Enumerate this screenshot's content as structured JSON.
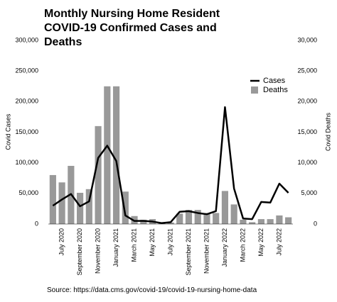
{
  "chart_data": {
    "type": "combo",
    "title": "Monthly Nursing Home Resident COVID-19 Confirmed Cases and Deaths",
    "source": "Source: https://data.cms.gov/covid-19/covid-19-nursing-home-data",
    "y_label": "Covid Cases",
    "y2_label": "Covid Deaths",
    "categories": [
      null,
      "July 2020",
      null,
      "September 2020",
      null,
      "November 2020",
      null,
      "January 2021",
      null,
      "March 2021",
      null,
      "May 2021",
      null,
      "July 2021",
      null,
      "September 2021",
      null,
      "November 2021",
      null,
      "January 2022",
      null,
      "March 2022",
      null,
      "May 2022",
      null,
      "July 2022",
      null
    ],
    "series": [
      {
        "name": "Cases",
        "type": "line",
        "color": "#000000",
        "values": [
          30000,
          40000,
          49000,
          29000,
          37000,
          108000,
          128000,
          103000,
          14000,
          5000,
          5000,
          4000,
          1500,
          3000,
          20000,
          21000,
          18000,
          16000,
          21000,
          191000,
          58000,
          9000,
          8000,
          36000,
          35000,
          66000,
          51000
        ]
      },
      {
        "name": "Deaths",
        "type": "bar",
        "axis": "y2",
        "color": "#999999",
        "values": [
          8000,
          6800,
          9500,
          5100,
          5700,
          16000,
          22500,
          22500,
          5300,
          1300,
          700,
          800,
          300,
          250,
          1700,
          2300,
          2300,
          1800,
          1800,
          5400,
          3200,
          700,
          300,
          800,
          800,
          1400,
          1100
        ]
      }
    ],
    "ylim": [
      0,
      300000
    ],
    "yticks": [
      0,
      {
        "value": 50000,
        "label": "50,000"
      },
      {
        "value": 100000,
        "label": "100,000"
      },
      {
        "value": 150000,
        "label": "150,000"
      },
      {
        "value": 200000,
        "label": "200,000"
      },
      {
        "value": 250000,
        "label": "250,000"
      },
      {
        "value": 300000,
        "label": "300,000"
      }
    ],
    "y2lim": [
      0,
      30000
    ],
    "y2ticks": [
      0,
      {
        "value": 5000,
        "label": "5,000"
      },
      {
        "value": 10000,
        "label": "10,000"
      },
      {
        "value": 15000,
        "label": "15,000"
      },
      {
        "value": 20000,
        "label": "20,000"
      },
      {
        "value": 25000,
        "label": "25,000"
      },
      {
        "value": 30000,
        "label": "30,000"
      }
    ],
    "grid": false,
    "legend": "upper-right"
  }
}
